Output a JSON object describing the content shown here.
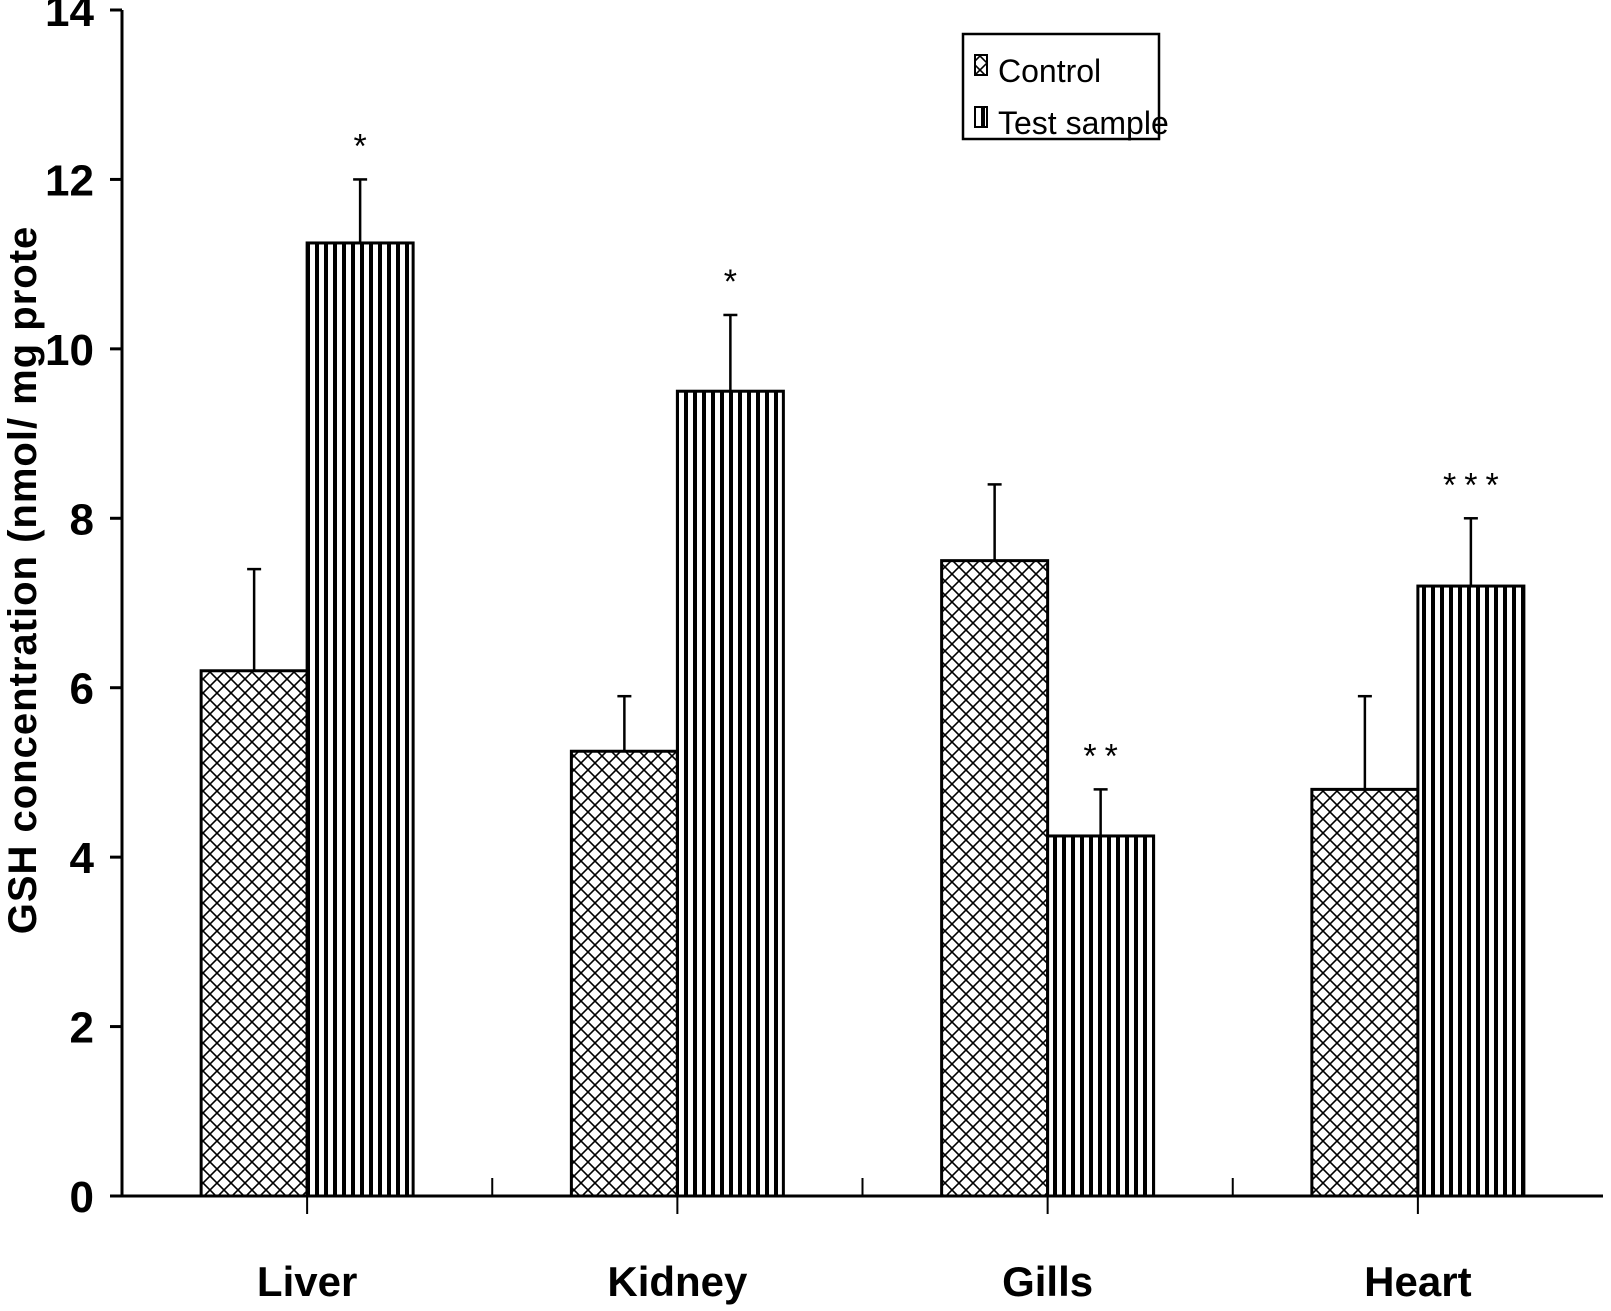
{
  "chart_data": {
    "type": "bar",
    "title": "",
    "xlabel": "",
    "ylabel": "GSH concentration (nmol/ mg prote",
    "ylim": [
      0,
      14
    ],
    "yticks": [
      "0",
      "2",
      "4",
      "6",
      "8",
      "10",
      "12",
      "14"
    ],
    "categories": [
      "Liver",
      "Kidney",
      "Gills",
      "Heart"
    ],
    "series": [
      {
        "name": "Control",
        "pattern": "crosshatch",
        "values": [
          6.2,
          5.25,
          7.5,
          4.8
        ],
        "errors": [
          1.2,
          0.65,
          0.9,
          1.1
        ]
      },
      {
        "name": "Test sample",
        "pattern": "vertical-stripes",
        "values": [
          11.25,
          9.5,
          4.25,
          7.2
        ],
        "errors": [
          0.75,
          0.9,
          0.55,
          0.8
        ]
      }
    ],
    "significance": [
      "*",
      "*",
      "**",
      "***"
    ],
    "legend_position": "top-right",
    "grid": false,
    "colors": {
      "bar_stroke": "#000000",
      "bar_fill": "#ffffff"
    }
  }
}
